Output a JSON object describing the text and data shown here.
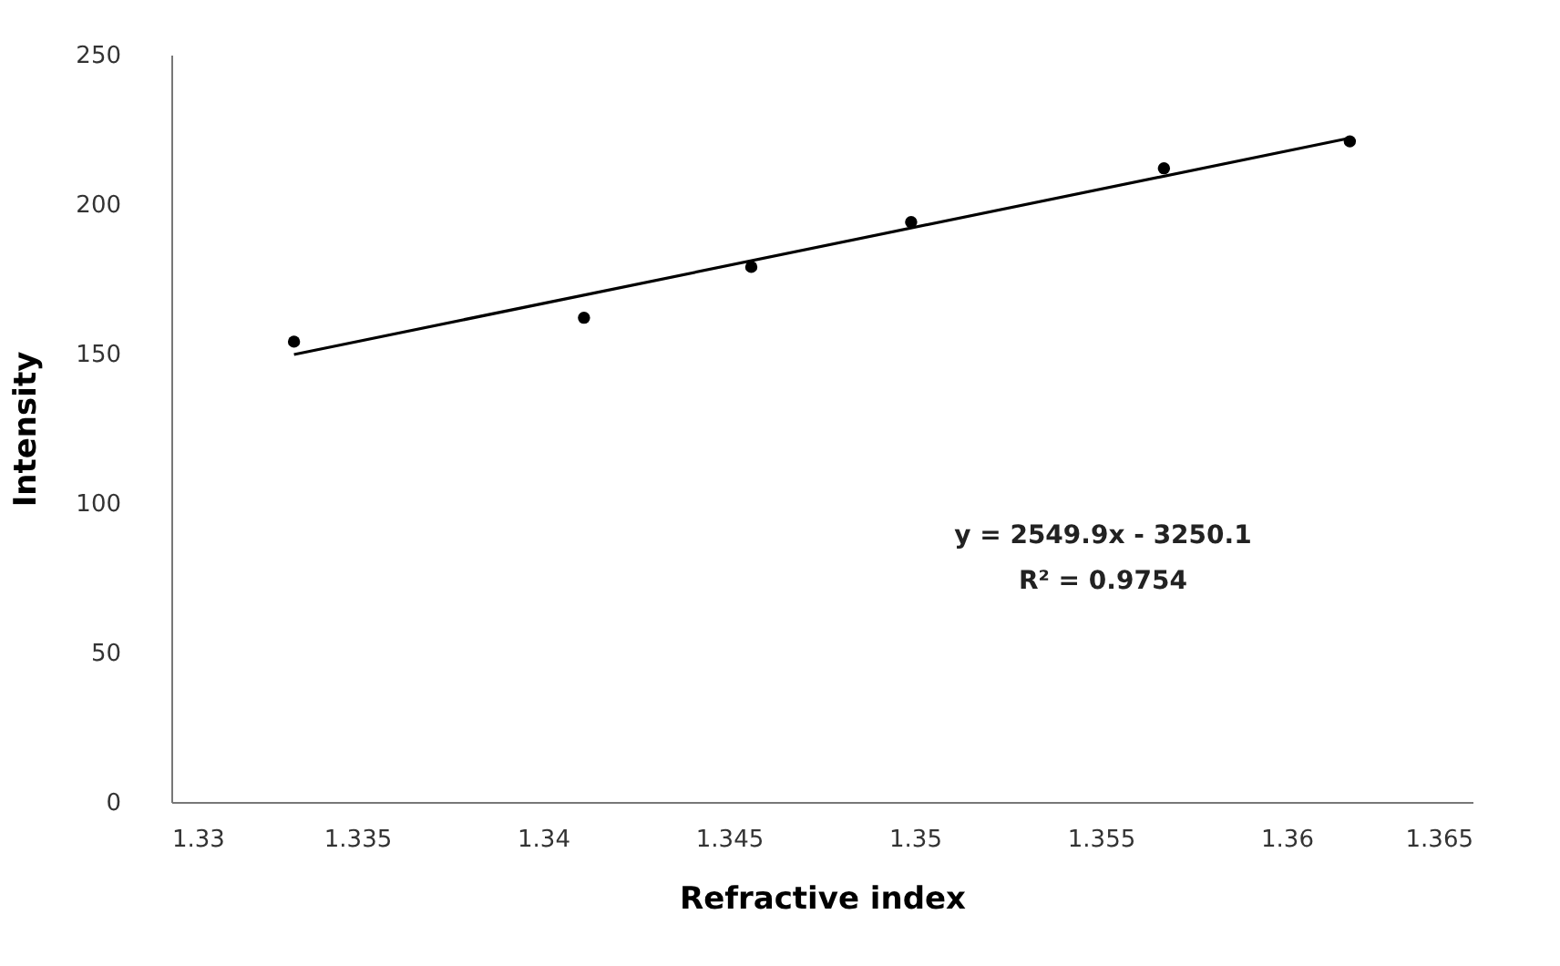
{
  "chart_data": {
    "type": "scatter",
    "xlabel": "Refractive index",
    "ylabel": "Intensity",
    "xlim": [
      1.33,
      1.365
    ],
    "xticks": [
      1.33,
      1.335,
      1.34,
      1.345,
      1.35,
      1.355,
      1.36,
      1.365
    ],
    "ylim": [
      0,
      250
    ],
    "yticks": [
      0,
      50,
      100,
      150,
      200,
      250
    ],
    "series": [
      {
        "color": "#000000",
        "marker": "circle",
        "x": [
          1.3333,
          1.3411,
          1.3456,
          1.3499,
          1.3567,
          1.3617
        ],
        "values": [
          154,
          162,
          179,
          194,
          212,
          221
        ]
      },
      {
        "type": "line",
        "color": "#000000",
        "line_style": "solid",
        "marker": "none",
        "x": [
          1.3333,
          1.3617
        ],
        "values": [
          149.7,
          222.1
        ]
      }
    ],
    "annotations": [
      "y = 2549.9x - 3250.1",
      "R² = 0.9754"
    ]
  }
}
